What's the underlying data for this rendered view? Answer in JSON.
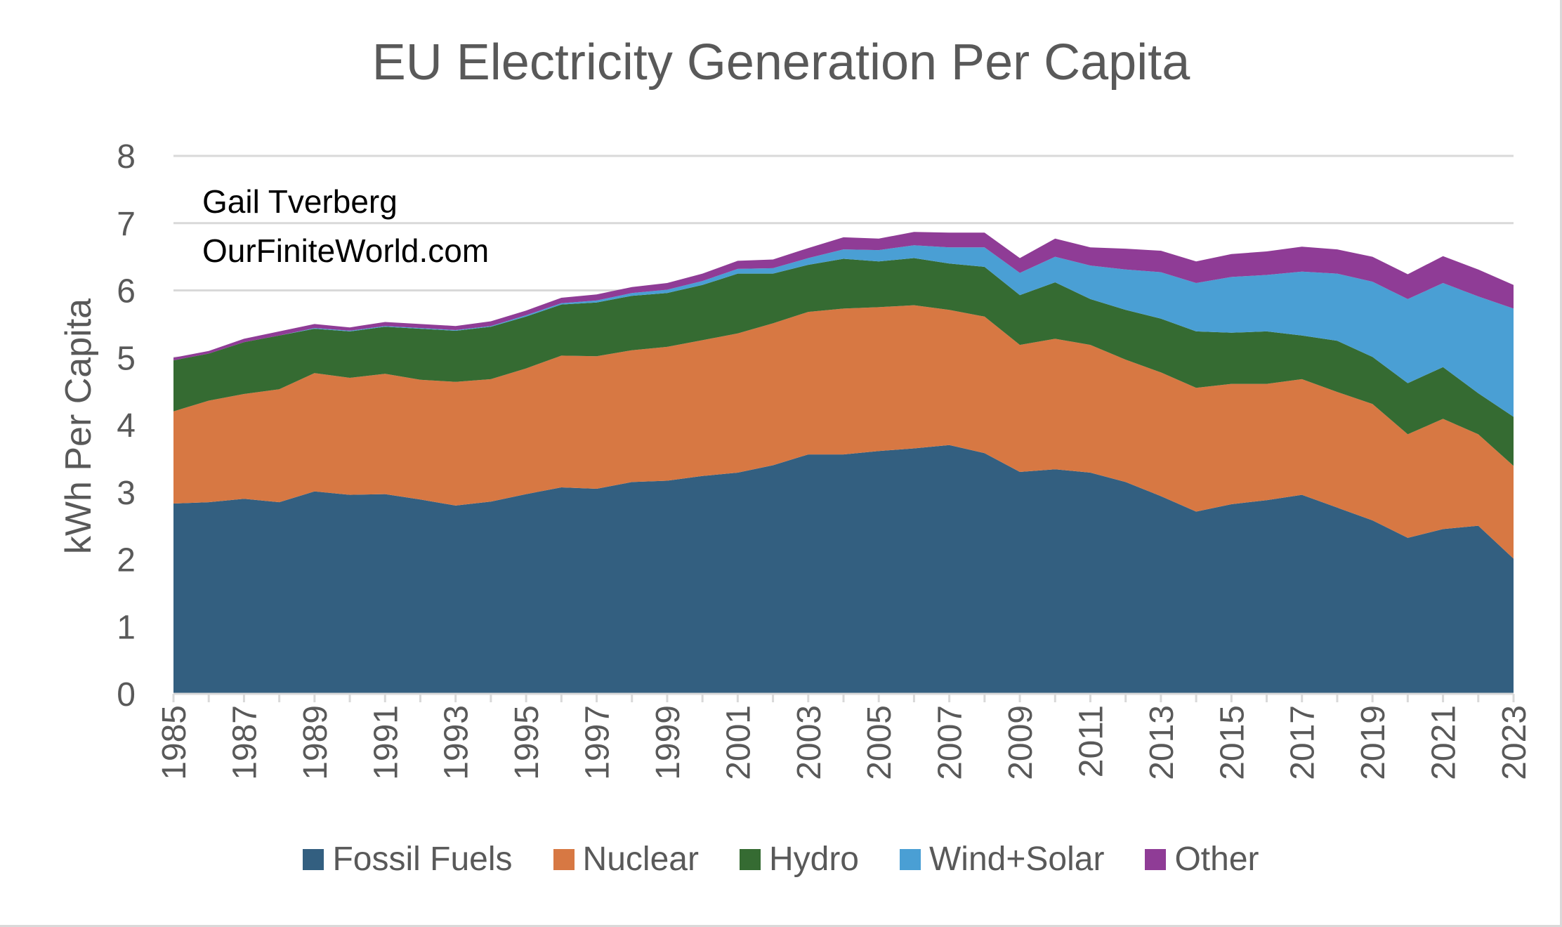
{
  "chart_data": {
    "type": "area",
    "title": "EU Electricity Generation Per Capita",
    "annotations": [
      "Gail Tverberg",
      "OurFiniteWorld.com"
    ],
    "ylabel": "kWh Per Capita",
    "xlabel": "",
    "ylim": [
      0,
      8
    ],
    "yticks": [
      "0",
      "1",
      "2",
      "3",
      "4",
      "5",
      "6",
      "7",
      "8"
    ],
    "xticks": [
      "1985",
      "1987",
      "1989",
      "1991",
      "1993",
      "1995",
      "1997",
      "1999",
      "2001",
      "2003",
      "2005",
      "2007",
      "2009",
      "2011",
      "2013",
      "2015",
      "2017",
      "2019",
      "2021",
      "2023"
    ],
    "x": [
      1985,
      1986,
      1987,
      1988,
      1989,
      1990,
      1991,
      1992,
      1993,
      1994,
      1995,
      1996,
      1997,
      1998,
      1999,
      2000,
      2001,
      2002,
      2003,
      2004,
      2005,
      2006,
      2007,
      2008,
      2009,
      2010,
      2011,
      2012,
      2013,
      2014,
      2015,
      2016,
      2017,
      2018,
      2019,
      2020,
      2021,
      2022,
      2023
    ],
    "grid": true,
    "legend_position": "bottom",
    "stacked": true,
    "series": [
      {
        "name": "Fossil Fuels",
        "color": "#335f80",
        "values": [
          2.83,
          2.85,
          2.9,
          2.85,
          3.01,
          2.96,
          2.97,
          2.89,
          2.8,
          2.86,
          2.97,
          3.07,
          3.05,
          3.15,
          3.17,
          3.24,
          3.29,
          3.4,
          3.56,
          3.56,
          3.61,
          3.65,
          3.7,
          3.58,
          3.3,
          3.34,
          3.29,
          3.15,
          2.94,
          2.71,
          2.82,
          2.88,
          2.96,
          2.77,
          2.58,
          2.32,
          2.45,
          2.5,
          2.01
        ]
      },
      {
        "name": "Nuclear",
        "color": "#d77843",
        "values": [
          1.37,
          1.51,
          1.56,
          1.68,
          1.76,
          1.74,
          1.79,
          1.78,
          1.84,
          1.82,
          1.87,
          1.96,
          1.97,
          1.96,
          1.99,
          2.02,
          2.07,
          2.11,
          2.12,
          2.17,
          2.14,
          2.13,
          2.01,
          2.03,
          1.89,
          1.94,
          1.9,
          1.82,
          1.84,
          1.84,
          1.79,
          1.73,
          1.72,
          1.72,
          1.73,
          1.54,
          1.64,
          1.36,
          1.38
        ]
      },
      {
        "name": "Hydro",
        "color": "#356b32",
        "values": [
          0.76,
          0.7,
          0.77,
          0.8,
          0.66,
          0.69,
          0.7,
          0.76,
          0.76,
          0.78,
          0.77,
          0.76,
          0.8,
          0.81,
          0.8,
          0.82,
          0.89,
          0.74,
          0.7,
          0.74,
          0.68,
          0.7,
          0.69,
          0.74,
          0.74,
          0.84,
          0.68,
          0.74,
          0.8,
          0.84,
          0.76,
          0.78,
          0.65,
          0.76,
          0.7,
          0.76,
          0.77,
          0.61,
          0.73
        ]
      },
      {
        "name": "Wind+Solar",
        "color": "#4a9fd4",
        "values": [
          0.0,
          0.0,
          0.0,
          0.0,
          0.01,
          0.01,
          0.01,
          0.01,
          0.01,
          0.01,
          0.02,
          0.02,
          0.03,
          0.04,
          0.05,
          0.06,
          0.07,
          0.08,
          0.1,
          0.14,
          0.17,
          0.19,
          0.24,
          0.29,
          0.33,
          0.38,
          0.5,
          0.6,
          0.69,
          0.72,
          0.83,
          0.84,
          0.95,
          1.0,
          1.12,
          1.25,
          1.25,
          1.44,
          1.61
        ]
      },
      {
        "name": "Other",
        "color": "#8f3c96",
        "values": [
          0.04,
          0.04,
          0.05,
          0.06,
          0.06,
          0.05,
          0.06,
          0.06,
          0.06,
          0.07,
          0.07,
          0.08,
          0.09,
          0.09,
          0.1,
          0.11,
          0.12,
          0.13,
          0.15,
          0.18,
          0.17,
          0.2,
          0.22,
          0.22,
          0.22,
          0.27,
          0.27,
          0.31,
          0.32,
          0.32,
          0.34,
          0.35,
          0.37,
          0.36,
          0.37,
          0.37,
          0.4,
          0.4,
          0.35
        ]
      }
    ]
  }
}
